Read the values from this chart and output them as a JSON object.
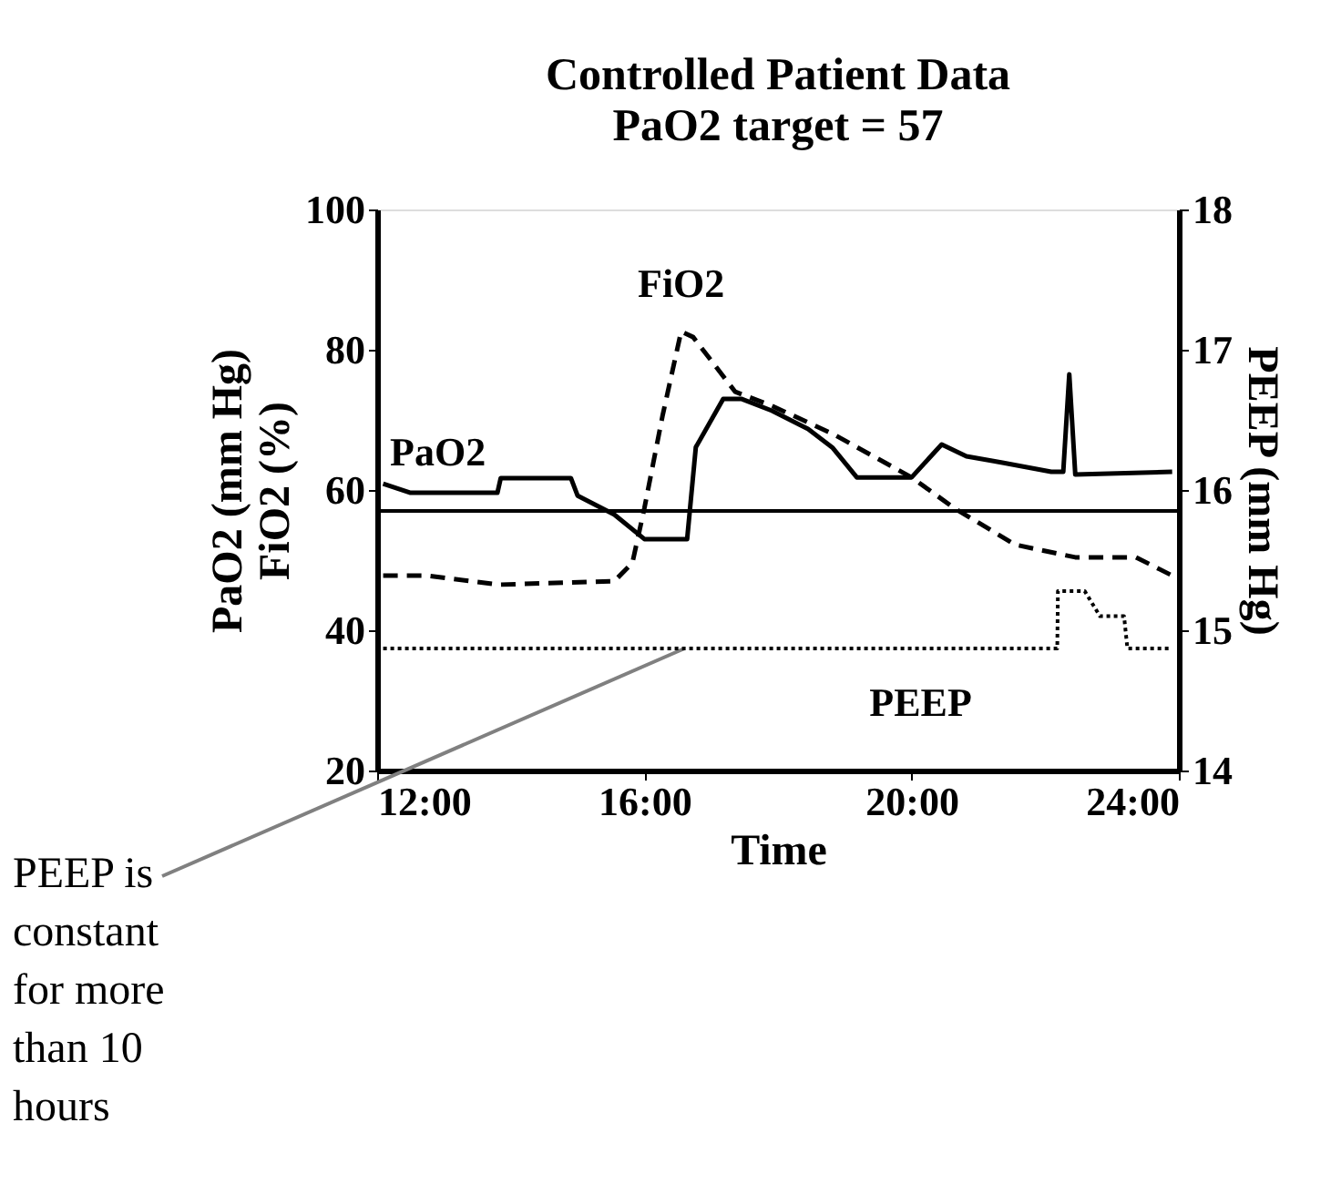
{
  "chart_data": {
    "type": "line",
    "title": "Controlled Patient Data",
    "subtitle": "PaO2 target  = 57",
    "xlabel": "Time",
    "ylabel": "PaO2 (mm Hg)\nFiO2 (%)",
    "y2label": "PEEP (mm Hg)",
    "xlim": [
      12,
      24
    ],
    "xticks": [
      {
        "value": 12,
        "label": "12:00"
      },
      {
        "value": 16,
        "label": "16:00"
      },
      {
        "value": 20,
        "label": "20:00"
      },
      {
        "value": 24,
        "label": "24:00"
      }
    ],
    "ylim": [
      20,
      100
    ],
    "yticks": [
      20,
      40,
      60,
      80,
      100
    ],
    "y2lim": [
      14,
      18
    ],
    "y2ticks": [
      14,
      15,
      16,
      17,
      18
    ],
    "grid": false,
    "marker": "none",
    "ref_lines": [
      {
        "axis": "y",
        "value": 57,
        "label": null,
        "color": "#000000",
        "line_style": "solid"
      }
    ],
    "annotations": [
      {
        "text": "PEEP is constant for more than 10 hours",
        "x": 16.6,
        "y": 37.4
      }
    ],
    "series": [
      {
        "name": "PaO2",
        "color": "#000000",
        "line_style": "solid",
        "x": [
          12.09,
          12.5,
          13.8,
          13.85,
          14.9,
          15.0,
          15.55,
          16.0,
          16.64,
          16.77,
          17.18,
          17.45,
          17.91,
          18.45,
          18.82,
          19.18,
          20.0,
          20.45,
          20.82,
          21.36,
          22.09,
          22.27,
          22.36,
          22.45,
          23.9
        ],
        "values": [
          60.9,
          59.6,
          59.6,
          61.7,
          61.7,
          59.2,
          56.5,
          53,
          53,
          66.1,
          73,
          73,
          71.3,
          68.7,
          66,
          61.8,
          61.8,
          66.5,
          64.8,
          63.9,
          62.6,
          62.6,
          76.5,
          62.2,
          62.6
        ]
      },
      {
        "name": "FiO2",
        "color": "#000000",
        "line_style": "dashed",
        "x": [
          12.09,
          12.73,
          13.82,
          15.55,
          15.82,
          16.0,
          16.27,
          16.55,
          16.73,
          17.36,
          17.91,
          18.82,
          20.0,
          20.64,
          21.55,
          22.45,
          23.36,
          23.9
        ],
        "values": [
          47.8,
          47.8,
          46.5,
          47,
          49.6,
          57.4,
          70.5,
          82.6,
          81.8,
          74,
          72,
          68,
          61.8,
          57.4,
          52.2,
          50.4,
          50.4,
          47.8
        ]
      },
      {
        "name": "PEEP",
        "color": "#000000",
        "line_style": "dotted",
        "axis": "y2",
        "x": [
          12.09,
          22.18,
          22.19,
          22.59,
          22.82,
          23.18,
          23.23,
          23.9
        ],
        "values": [
          14.87,
          14.87,
          15.28,
          15.28,
          15.1,
          15.1,
          14.87,
          14.87
        ]
      }
    ]
  }
}
